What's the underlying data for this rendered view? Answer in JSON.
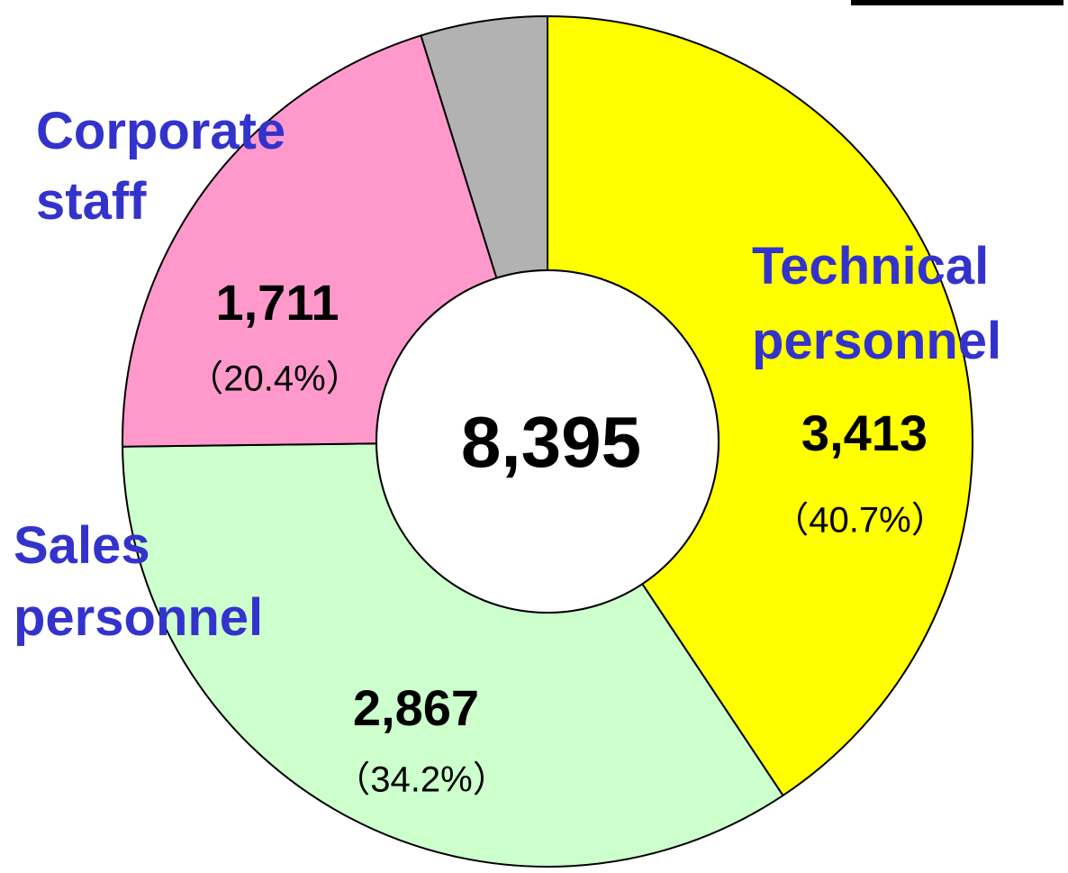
{
  "chart_data": {
    "type": "donut",
    "categories": [
      "Technical personnel",
      "Sales personnel",
      "Corporate staff",
      null
    ],
    "values": [
      3413,
      2867,
      1711,
      404
    ],
    "value_labels": [
      "3,413",
      "2,867",
      "1,711",
      null
    ],
    "percent_labels": [
      "（40.7%）",
      "（34.2%）",
      "（20.4%）",
      null
    ],
    "colors": [
      "#ffff00",
      "#ccffcc",
      "#ff99cc",
      "#b2b2b2"
    ],
    "total_label": "8,395"
  }
}
